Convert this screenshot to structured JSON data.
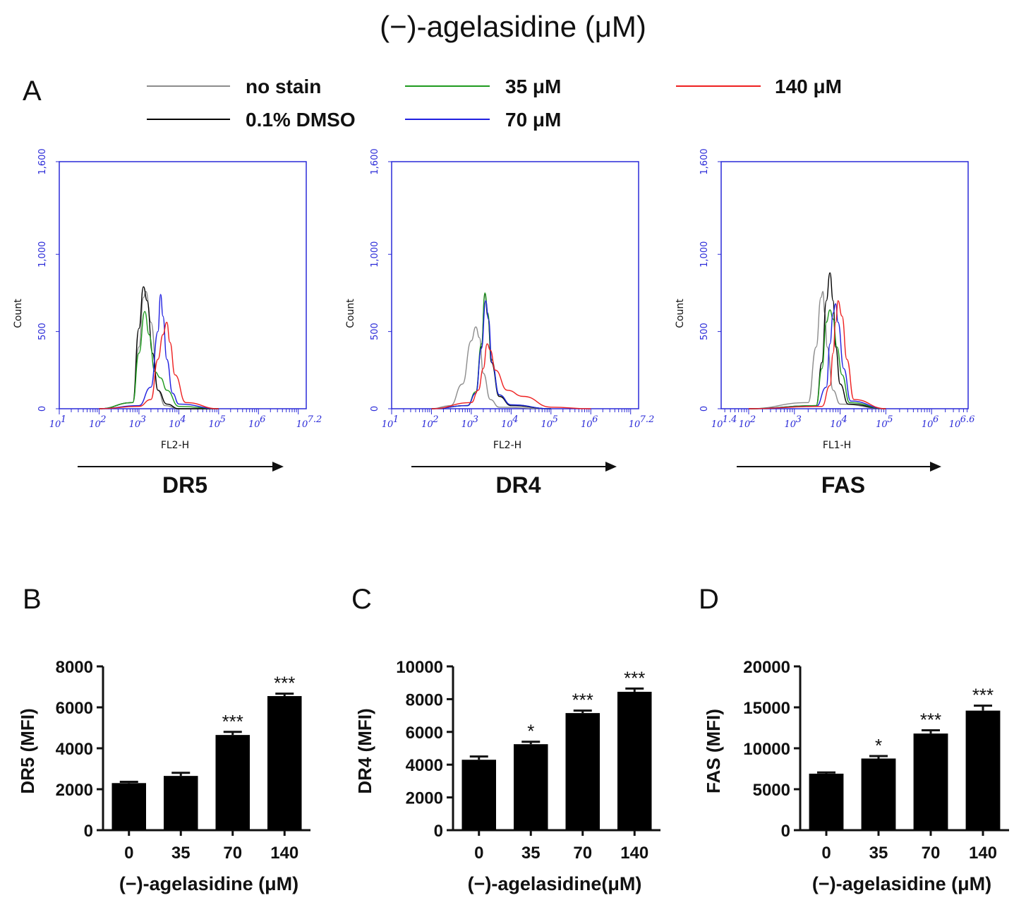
{
  "header": {
    "title": "(−)-agelasidine (μM)"
  },
  "panel_letters": [
    "A",
    "B",
    "C",
    "D"
  ],
  "legend": [
    {
      "label": "no stain",
      "color": "#8c8c8c"
    },
    {
      "label": "0.1% DMSO",
      "color": "#000000"
    },
    {
      "label": "35 μM",
      "color": "#1e9a1e"
    },
    {
      "label": "70 μM",
      "color": "#2020e0"
    },
    {
      "label": "140 μM",
      "color": "#ee2020"
    }
  ],
  "colors": {
    "flow_axis": "#2a2ad8",
    "bar_fill": "#000000"
  },
  "chart_data": [
    {
      "type": "line",
      "panel": "A",
      "marker": "DR5",
      "xlabel": "FL2-H",
      "ylabel": "Count",
      "x_scale": "log",
      "xlim": [
        10,
        15848932
      ],
      "ylim": [
        0,
        1600
      ],
      "xtick_labels": [
        "10",
        "10",
        "10",
        "10",
        "10",
        "10",
        "10"
      ],
      "xtick_exponents": [
        "1",
        "2",
        "3",
        "4",
        "5",
        "6",
        "7.2"
      ],
      "ytick_labels": [
        "0",
        "500",
        "1,000",
        "1,600"
      ],
      "yticks": [
        0,
        500,
        1000,
        1600
      ],
      "series": [
        {
          "name": "no stain",
          "x": [
            100,
            700,
            1000,
            1300,
            1500,
            2000,
            3000,
            4500,
            10000,
            100000
          ],
          "y": [
            0,
            40,
            400,
            720,
            760,
            560,
            120,
            20,
            0,
            0
          ]
        },
        {
          "name": "0.1% DMSO",
          "x": [
            100,
            700,
            1000,
            1300,
            1600,
            2200,
            3000,
            5000,
            10000,
            100000
          ],
          "y": [
            0,
            40,
            520,
            790,
            700,
            360,
            120,
            30,
            0,
            0
          ]
        },
        {
          "name": "35 μM",
          "x": [
            100,
            700,
            1000,
            1400,
            1800,
            2500,
            3500,
            5000,
            10000,
            100000
          ],
          "y": [
            0,
            40,
            360,
            630,
            480,
            240,
            200,
            120,
            15,
            0
          ]
        },
        {
          "name": "70 μM",
          "x": [
            100,
            1000,
            2000,
            3000,
            3500,
            4000,
            5000,
            7000,
            10000,
            100000
          ],
          "y": [
            0,
            20,
            140,
            500,
            740,
            600,
            320,
            100,
            30,
            0
          ]
        },
        {
          "name": "140 μM",
          "x": [
            100,
            1000,
            2000,
            3000,
            4000,
            5000,
            6000,
            8000,
            15000,
            100000
          ],
          "y": [
            0,
            15,
            60,
            320,
            480,
            560,
            430,
            220,
            40,
            0
          ]
        }
      ]
    },
    {
      "type": "line",
      "panel": "A",
      "marker": "DR4",
      "xlabel": "FL2-H",
      "ylabel": "Count",
      "x_scale": "log",
      "xlim": [
        10,
        15848932
      ],
      "ylim": [
        0,
        1600
      ],
      "xtick_labels": [
        "10",
        "10",
        "10",
        "10",
        "10",
        "10",
        "10"
      ],
      "xtick_exponents": [
        "1",
        "2",
        "3",
        "4",
        "5",
        "6",
        "7.2"
      ],
      "ytick_labels": [
        "0",
        "500",
        "1,000",
        "1,600"
      ],
      "yticks": [
        0,
        500,
        1000,
        1600
      ],
      "series": [
        {
          "name": "no stain",
          "x": [
            100,
            300,
            600,
            1000,
            1300,
            1600,
            2000,
            3000,
            5000,
            100000
          ],
          "y": [
            0,
            20,
            160,
            440,
            530,
            460,
            230,
            60,
            10,
            0
          ]
        },
        {
          "name": "0.1% DMSO",
          "x": [
            100,
            800,
            1300,
            1800,
            2200,
            2600,
            3200,
            5000,
            10000,
            100000
          ],
          "y": [
            0,
            20,
            100,
            400,
            740,
            600,
            300,
            80,
            20,
            0
          ]
        },
        {
          "name": "35 μM",
          "x": [
            100,
            800,
            1300,
            1800,
            2200,
            2600,
            3200,
            5000,
            10000,
            100000
          ],
          "y": [
            0,
            20,
            110,
            420,
            750,
            620,
            320,
            90,
            25,
            0
          ]
        },
        {
          "name": "70 μM",
          "x": [
            100,
            800,
            1300,
            1800,
            2300,
            2700,
            3300,
            5000,
            10000,
            100000
          ],
          "y": [
            0,
            20,
            100,
            390,
            700,
            580,
            300,
            90,
            25,
            0
          ]
        },
        {
          "name": "140 μM",
          "x": [
            100,
            1000,
            1500,
            2000,
            2500,
            3000,
            4000,
            8000,
            20000,
            100000,
            1000000
          ],
          "y": [
            0,
            40,
            120,
            260,
            420,
            380,
            250,
            120,
            80,
            10,
            0
          ]
        }
      ]
    },
    {
      "type": "line",
      "panel": "A",
      "marker": "FAS",
      "xlabel": "FL1-H",
      "ylabel": "Count",
      "x_scale": "log",
      "xlim": [
        25,
        6309573
      ],
      "ylim": [
        0,
        1600
      ],
      "xtick_labels": [
        "10",
        "10",
        "10",
        "10",
        "10",
        "10",
        "10"
      ],
      "xtick_exponents": [
        "1.4",
        "2",
        "3",
        "4",
        "5",
        "6",
        "6.6"
      ],
      "ytick_labels": [
        "0",
        "500",
        "1,000",
        "1,600"
      ],
      "yticks": [
        0,
        500,
        1000,
        1600
      ],
      "series": [
        {
          "name": "no stain",
          "x": [
            100,
            2000,
            3000,
            3800,
            4200,
            4600,
            5200,
            7000,
            10000,
            100000
          ],
          "y": [
            0,
            40,
            400,
            720,
            760,
            620,
            400,
            120,
            30,
            0
          ]
        },
        {
          "name": "0.1% DMSO",
          "x": [
            100,
            3000,
            4000,
            5000,
            6000,
            7000,
            8000,
            10000,
            15000,
            100000
          ],
          "y": [
            0,
            20,
            300,
            700,
            880,
            700,
            400,
            160,
            30,
            0
          ]
        },
        {
          "name": "35 μM",
          "x": [
            100,
            3000,
            4000,
            5000,
            6000,
            7000,
            8500,
            11000,
            16000,
            100000
          ],
          "y": [
            0,
            20,
            260,
            560,
            640,
            580,
            400,
            220,
            40,
            0
          ]
        },
        {
          "name": "70 μM",
          "x": [
            100,
            3000,
            5000,
            6000,
            7000,
            8000,
            9000,
            12000,
            17000,
            100000
          ],
          "y": [
            0,
            15,
            140,
            420,
            620,
            680,
            560,
            260,
            50,
            0
          ]
        },
        {
          "name": "140 μM",
          "x": [
            100,
            4000,
            6000,
            7000,
            8000,
            9000,
            11000,
            14000,
            20000,
            100000
          ],
          "y": [
            0,
            15,
            150,
            360,
            560,
            700,
            600,
            320,
            60,
            0
          ]
        }
      ]
    },
    {
      "type": "bar",
      "panel": "B",
      "ylabel": "DR5 (MFI)",
      "xlabel": "(−)-agelasidine (μM)",
      "categories": [
        "0",
        "35",
        "70",
        "140"
      ],
      "values": [
        2300,
        2650,
        4650,
        6550
      ],
      "errors": [
        60,
        150,
        150,
        120
      ],
      "significance": [
        "",
        "",
        "***",
        "***"
      ],
      "ylim": [
        0,
        8000
      ],
      "yticks": [
        0,
        2000,
        4000,
        6000,
        8000
      ]
    },
    {
      "type": "bar",
      "panel": "C",
      "ylabel": "DR4 (MFI)",
      "xlabel": "(−)-agelasidine(μM)",
      "categories": [
        "0",
        "35",
        "70",
        "140"
      ],
      "values": [
        4300,
        5250,
        7150,
        8450
      ],
      "errors": [
        200,
        150,
        150,
        200
      ],
      "significance": [
        "",
        "*",
        "***",
        "***"
      ],
      "ylim": [
        0,
        10000
      ],
      "yticks": [
        0,
        2000,
        4000,
        6000,
        8000,
        10000
      ]
    },
    {
      "type": "bar",
      "panel": "D",
      "ylabel": "FAS (MFI)",
      "xlabel": "(−)-agelasidine (μM)",
      "categories": [
        "0",
        "35",
        "70",
        "140"
      ],
      "values": [
        6900,
        8750,
        11800,
        14600
      ],
      "errors": [
        150,
        300,
        400,
        600
      ],
      "significance": [
        "",
        "*",
        "***",
        "***"
      ],
      "ylim": [
        0,
        20000
      ],
      "yticks": [
        0,
        5000,
        10000,
        15000,
        20000
      ]
    }
  ]
}
